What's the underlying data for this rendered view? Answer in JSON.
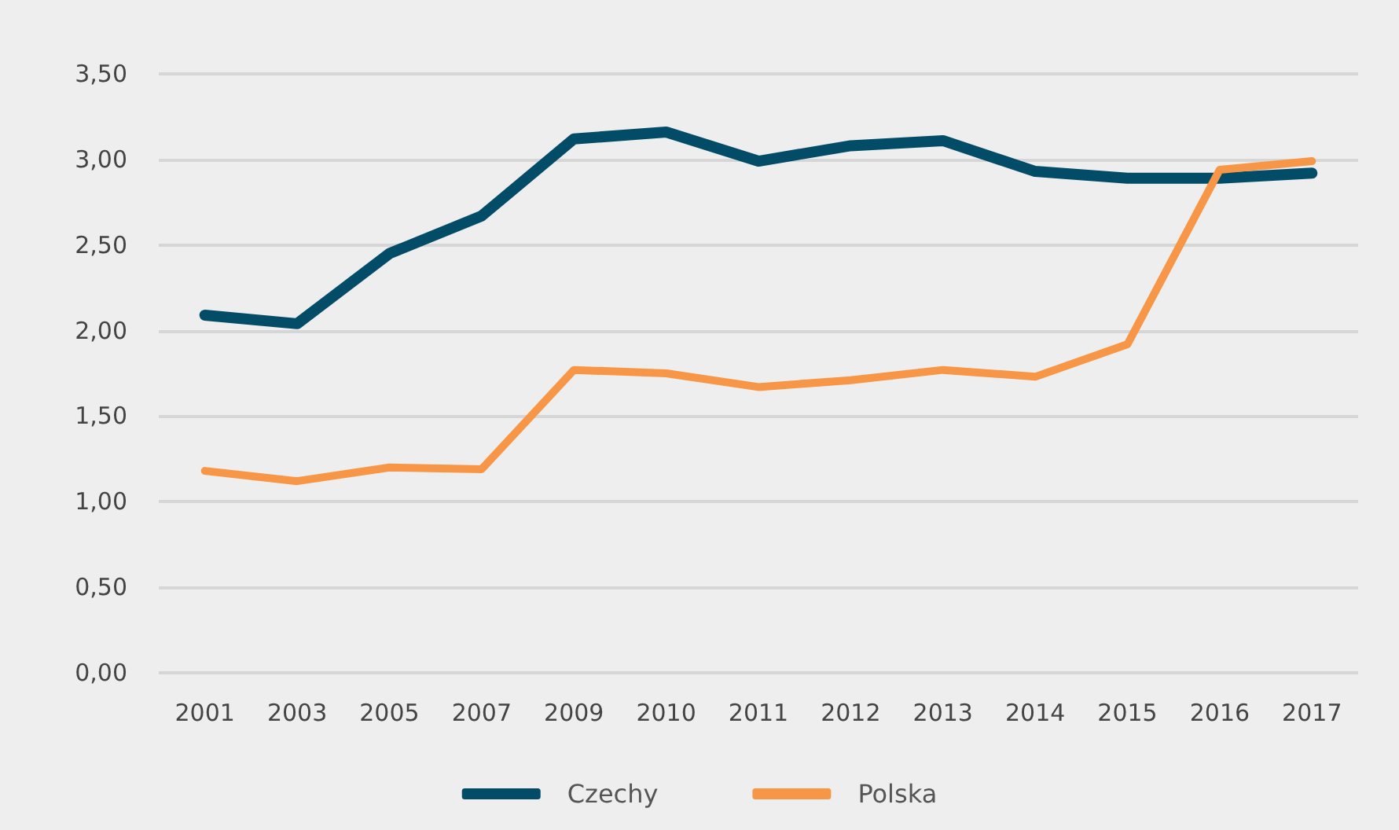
{
  "chart_data": {
    "type": "line",
    "categories": [
      "2001",
      "2003",
      "2005",
      "2007",
      "2009",
      "2010",
      "2011",
      "2012",
      "2013",
      "2014",
      "2015",
      "2016",
      "2017"
    ],
    "series": [
      {
        "name": "Czechy",
        "color": "#034c68",
        "values": [
          2.09,
          2.04,
          2.45,
          2.67,
          3.12,
          3.16,
          2.99,
          3.08,
          3.11,
          2.93,
          2.89,
          2.89,
          2.92
        ]
      },
      {
        "name": "Polska",
        "color": "#f79646",
        "values": [
          1.18,
          1.12,
          1.2,
          1.19,
          1.77,
          1.75,
          1.67,
          1.71,
          1.77,
          1.73,
          1.92,
          2.94,
          2.99
        ]
      }
    ],
    "ylim": [
      0,
      3.5
    ],
    "yticks": [
      {
        "value": 0,
        "label": "0,00"
      },
      {
        "value": 0.5,
        "label": "0,50"
      },
      {
        "value": 1,
        "label": "1,00"
      },
      {
        "value": 1.5,
        "label": "1,50"
      },
      {
        "value": 2,
        "label": "2,00"
      },
      {
        "value": 2.5,
        "label": "2,50"
      },
      {
        "value": 3,
        "label": "3,00"
      },
      {
        "value": 3.5,
        "label": "3,50"
      }
    ],
    "grid": "y",
    "legend": "bottom",
    "marker": "none",
    "line_style": "solid"
  }
}
